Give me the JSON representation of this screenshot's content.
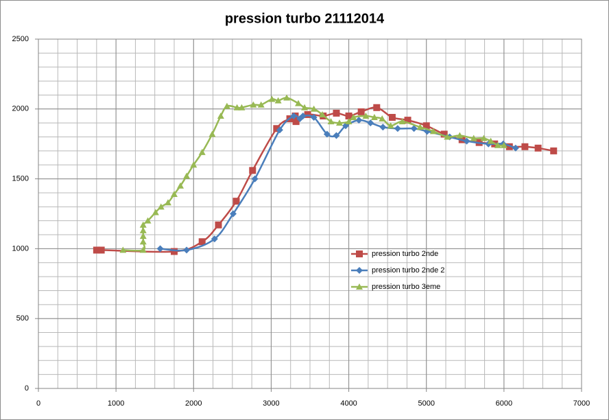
{
  "chart_data": {
    "type": "line",
    "title": "pression turbo 21112014",
    "xlim": [
      0,
      7000
    ],
    "xticks": [
      0,
      1000,
      2000,
      3000,
      4000,
      5000,
      6000,
      7000
    ],
    "ylim": [
      0,
      2500
    ],
    "yticks": [
      0,
      500,
      1000,
      1500,
      2000,
      2500
    ],
    "grid": true,
    "minor_grid": {
      "x": 250,
      "y": 100
    },
    "legend": "right",
    "series": [
      {
        "name": "pression turbo 2nde",
        "color": "#be4b48",
        "marker": "square",
        "x": [
          750,
          810,
          1750,
          2110,
          2320,
          2550,
          2760,
          3070,
          3240,
          3310,
          3320,
          3470,
          3670,
          3840,
          4000,
          4160,
          4360,
          4560,
          4760,
          5000,
          5230,
          5460,
          5680,
          5880,
          6070,
          6270,
          6440,
          6640
        ],
        "values": [
          990,
          990,
          980,
          1050,
          1170,
          1340,
          1560,
          1860,
          1930,
          1950,
          1910,
          1960,
          1950,
          1970,
          1950,
          1980,
          2010,
          1940,
          1920,
          1880,
          1820,
          1780,
          1760,
          1750,
          1730,
          1730,
          1720,
          1700
        ]
      },
      {
        "name": "pression turbo 2nde 2",
        "color": "#4a7ebb",
        "marker": "diamond",
        "x": [
          1570,
          1910,
          2270,
          2510,
          2790,
          3110,
          3290,
          3370,
          3410,
          3550,
          3720,
          3840,
          3960,
          4130,
          4280,
          4440,
          4630,
          4840,
          5010,
          5300,
          5520,
          5800,
          5990,
          6150
        ],
        "values": [
          1000,
          990,
          1070,
          1250,
          1500,
          1850,
          1950,
          1930,
          1950,
          1940,
          1820,
          1810,
          1880,
          1920,
          1900,
          1870,
          1860,
          1860,
          1840,
          1800,
          1770,
          1750,
          1750,
          1720
        ]
      },
      {
        "name": "pression turbo 3eme",
        "color": "#98b954",
        "marker": "triangle",
        "x": [
          1090,
          1350,
          1350,
          1350,
          1350,
          1350,
          1410,
          1510,
          1580,
          1670,
          1750,
          1830,
          1910,
          2000,
          2110,
          2240,
          2350,
          2430,
          2560,
          2620,
          2770,
          2870,
          3010,
          3090,
          3200,
          3350,
          3430,
          3550,
          3660,
          3770,
          3880,
          4000,
          4060,
          4220,
          4330,
          4430,
          4540,
          4690,
          4920,
          5090,
          5270,
          5430,
          5610,
          5740,
          5830,
          5920,
          6000
        ],
        "values": [
          990,
          990,
          1050,
          1090,
          1130,
          1170,
          1200,
          1260,
          1300,
          1330,
          1390,
          1450,
          1520,
          1600,
          1690,
          1820,
          1950,
          2020,
          2010,
          2010,
          2030,
          2030,
          2070,
          2060,
          2080,
          2040,
          2010,
          2000,
          1960,
          1910,
          1900,
          1910,
          1940,
          1950,
          1940,
          1930,
          1880,
          1910,
          1870,
          1840,
          1800,
          1810,
          1790,
          1790,
          1770,
          1740,
          1740
        ]
      }
    ]
  }
}
